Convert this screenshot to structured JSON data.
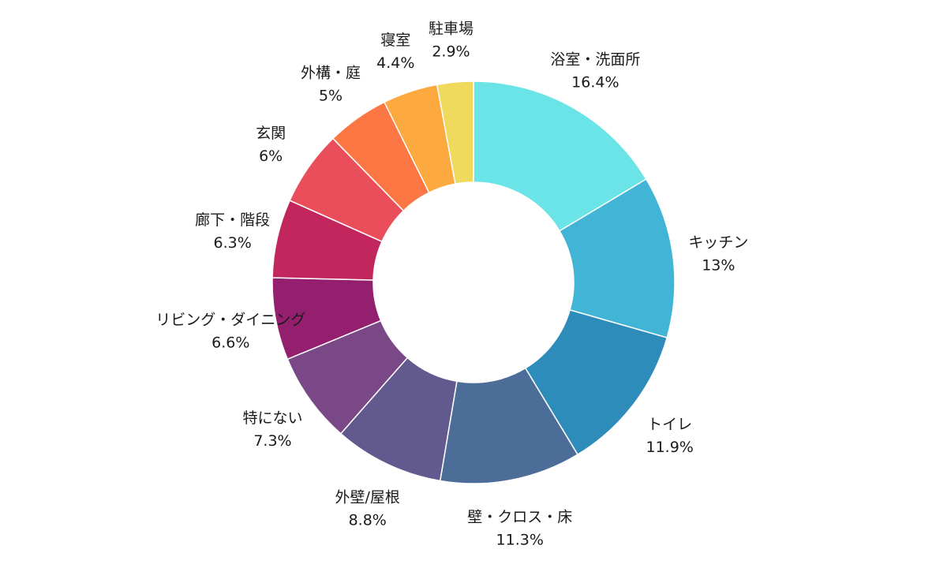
{
  "chart_data": {
    "type": "pie",
    "donut": true,
    "start": "top, clockwise",
    "legend": "none",
    "categories": [
      "浴室・洗面所",
      "キッチン",
      "トイレ",
      "壁・クロス・床",
      "外壁/屋根",
      "特にない",
      "リビング・ダイニング",
      "廊下・階段",
      "玄関",
      "外構・庭",
      "寝室",
      "駐車場"
    ],
    "values": [
      16.4,
      13,
      11.9,
      11.3,
      8.8,
      7.3,
      6.6,
      6.3,
      6,
      5,
      4.4,
      2.9
    ],
    "value_labels": [
      "16.4%",
      "13%",
      "11.9%",
      "11.3%",
      "8.8%",
      "7.3%",
      "6.6%",
      "6.3%",
      "6%",
      "5%",
      "4.4%",
      "2.9%"
    ],
    "colors": [
      "#6be4e8",
      "#42b5d6",
      "#2e8cbb",
      "#4d6d99",
      "#62598f",
      "#7b4887",
      "#931f6e",
      "#c1275d",
      "#ea4e5a",
      "#fd7745",
      "#fca93f",
      "#f0da5d"
    ]
  }
}
